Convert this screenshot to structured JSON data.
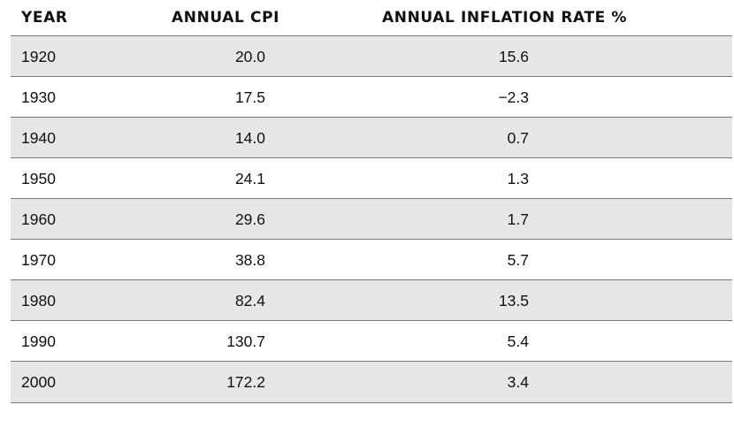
{
  "chart_data": {
    "type": "table",
    "columns": [
      "YEAR",
      "ANNUAL CPI",
      "ANNUAL INFLATION RATE %"
    ],
    "rows": [
      {
        "year": "1920",
        "cpi": "20.0",
        "rate": "15.6"
      },
      {
        "year": "1930",
        "cpi": "17.5",
        "rate": "−2.3"
      },
      {
        "year": "1940",
        "cpi": "14.0",
        "rate": "0.7"
      },
      {
        "year": "1950",
        "cpi": "24.1",
        "rate": "1.3"
      },
      {
        "year": "1960",
        "cpi": "29.6",
        "rate": "1.7"
      },
      {
        "year": "1970",
        "cpi": "38.8",
        "rate": "5.7"
      },
      {
        "year": "1980",
        "cpi": "82.4",
        "rate": "13.5"
      },
      {
        "year": "1990",
        "cpi": "130.7",
        "rate": "5.4"
      },
      {
        "year": "2000",
        "cpi": "172.2",
        "rate": "3.4"
      }
    ],
    "shading": "alternate rows, starting with first row",
    "colors": {
      "shaded_row": "#e6e6e6",
      "rule": "#7a7a7a",
      "text": "#111111"
    }
  }
}
